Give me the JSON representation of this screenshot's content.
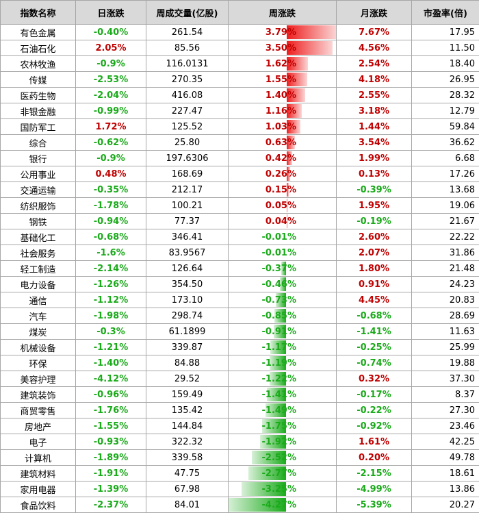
{
  "headers": [
    "指数名称",
    "日涨跌",
    "周成交量(亿股)",
    "周涨跌",
    "月涨跌",
    "市盈率(倍)"
  ],
  "colors": {
    "up": "#c00000",
    "down": "#1aaa1a",
    "header_bg": "#d9d9d9"
  },
  "rows": [
    {
      "name": "有色金属",
      "day": "-0.40%",
      "vol": "261.54",
      "week": "3.79%",
      "month": "7.67%",
      "pe": "17.95"
    },
    {
      "name": "石油石化",
      "day": "2.05%",
      "vol": "85.56",
      "week": "3.50%",
      "month": "4.56%",
      "pe": "11.50"
    },
    {
      "name": "农林牧渔",
      "day": "-0.9%",
      "vol": "116.0131",
      "week": "1.62%",
      "month": "2.54%",
      "pe": "18.40"
    },
    {
      "name": "传媒",
      "day": "-2.53%",
      "vol": "270.35",
      "week": "1.55%",
      "month": "4.18%",
      "pe": "26.95"
    },
    {
      "name": "医药生物",
      "day": "-2.04%",
      "vol": "416.08",
      "week": "1.40%",
      "month": "2.55%",
      "pe": "28.32"
    },
    {
      "name": "非银金融",
      "day": "-0.99%",
      "vol": "227.47",
      "week": "1.16%",
      "month": "3.18%",
      "pe": "12.79"
    },
    {
      "name": "国防军工",
      "day": "1.72%",
      "vol": "125.52",
      "week": "1.03%",
      "month": "1.44%",
      "pe": "59.84"
    },
    {
      "name": "综合",
      "day": "-0.62%",
      "vol": "25.80",
      "week": "0.63%",
      "month": "3.54%",
      "pe": "36.62"
    },
    {
      "name": "银行",
      "day": "-0.9%",
      "vol": "197.6306",
      "week": "0.42%",
      "month": "1.99%",
      "pe": "6.68"
    },
    {
      "name": "公用事业",
      "day": "0.48%",
      "vol": "168.69",
      "week": "0.26%",
      "month": "0.13%",
      "pe": "17.26"
    },
    {
      "name": "交通运输",
      "day": "-0.35%",
      "vol": "212.17",
      "week": "0.15%",
      "month": "-0.39%",
      "pe": "13.68"
    },
    {
      "name": "纺织服饰",
      "day": "-1.78%",
      "vol": "100.21",
      "week": "0.05%",
      "month": "1.95%",
      "pe": "19.06"
    },
    {
      "name": "钢铁",
      "day": "-0.94%",
      "vol": "77.37",
      "week": "0.04%",
      "month": "-0.19%",
      "pe": "21.67"
    },
    {
      "name": "基础化工",
      "day": "-0.68%",
      "vol": "346.41",
      "week": "-0.01%",
      "month": "2.60%",
      "pe": "22.22"
    },
    {
      "name": "社会服务",
      "day": "-1.6%",
      "vol": "83.9567",
      "week": "-0.01%",
      "month": "2.07%",
      "pe": "31.86"
    },
    {
      "name": "轻工制造",
      "day": "-2.14%",
      "vol": "126.64",
      "week": "-0.37%",
      "month": "1.80%",
      "pe": "21.48"
    },
    {
      "name": "电力设备",
      "day": "-1.26%",
      "vol": "354.50",
      "week": "-0.46%",
      "month": "0.91%",
      "pe": "24.23"
    },
    {
      "name": "通信",
      "day": "-1.12%",
      "vol": "173.10",
      "week": "-0.73%",
      "month": "4.45%",
      "pe": "20.83"
    },
    {
      "name": "汽车",
      "day": "-1.98%",
      "vol": "298.74",
      "week": "-0.85%",
      "month": "-0.68%",
      "pe": "28.69"
    },
    {
      "name": "煤炭",
      "day": "-0.3%",
      "vol": "61.1899",
      "week": "-0.91%",
      "month": "-1.41%",
      "pe": "11.63"
    },
    {
      "name": "机械设备",
      "day": "-1.21%",
      "vol": "339.87",
      "week": "-1.17%",
      "month": "-0.25%",
      "pe": "25.99"
    },
    {
      "name": "环保",
      "day": "-1.40%",
      "vol": "84.88",
      "week": "-1.19%",
      "month": "-0.74%",
      "pe": "19.88"
    },
    {
      "name": "美容护理",
      "day": "-4.12%",
      "vol": "29.52",
      "week": "-1.22%",
      "month": "0.32%",
      "pe": "37.30"
    },
    {
      "name": "建筑装饰",
      "day": "-0.96%",
      "vol": "159.49",
      "week": "-1.41%",
      "month": "-0.17%",
      "pe": "8.37"
    },
    {
      "name": "商贸零售",
      "day": "-1.76%",
      "vol": "135.42",
      "week": "-1.49%",
      "month": "-0.22%",
      "pe": "27.30"
    },
    {
      "name": "房地产",
      "day": "-1.55%",
      "vol": "144.84",
      "week": "-1.75%",
      "month": "-0.92%",
      "pe": "23.46"
    },
    {
      "name": "电子",
      "day": "-0.93%",
      "vol": "322.32",
      "week": "-1.92%",
      "month": "1.61%",
      "pe": "42.25"
    },
    {
      "name": "计算机",
      "day": "-1.89%",
      "vol": "339.58",
      "week": "-2.52%",
      "month": "0.20%",
      "pe": "49.78"
    },
    {
      "name": "建筑材料",
      "day": "-1.91%",
      "vol": "47.75",
      "week": "-2.77%",
      "month": "-2.15%",
      "pe": "18.61"
    },
    {
      "name": "家用电器",
      "day": "-1.39%",
      "vol": "67.98",
      "week": "-3.25%",
      "month": "-4.99%",
      "pe": "13.86"
    },
    {
      "name": "食品饮料",
      "day": "-2.37%",
      "vol": "84.01",
      "week": "-4.27%",
      "month": "-5.39%",
      "pe": "20.27"
    }
  ]
}
